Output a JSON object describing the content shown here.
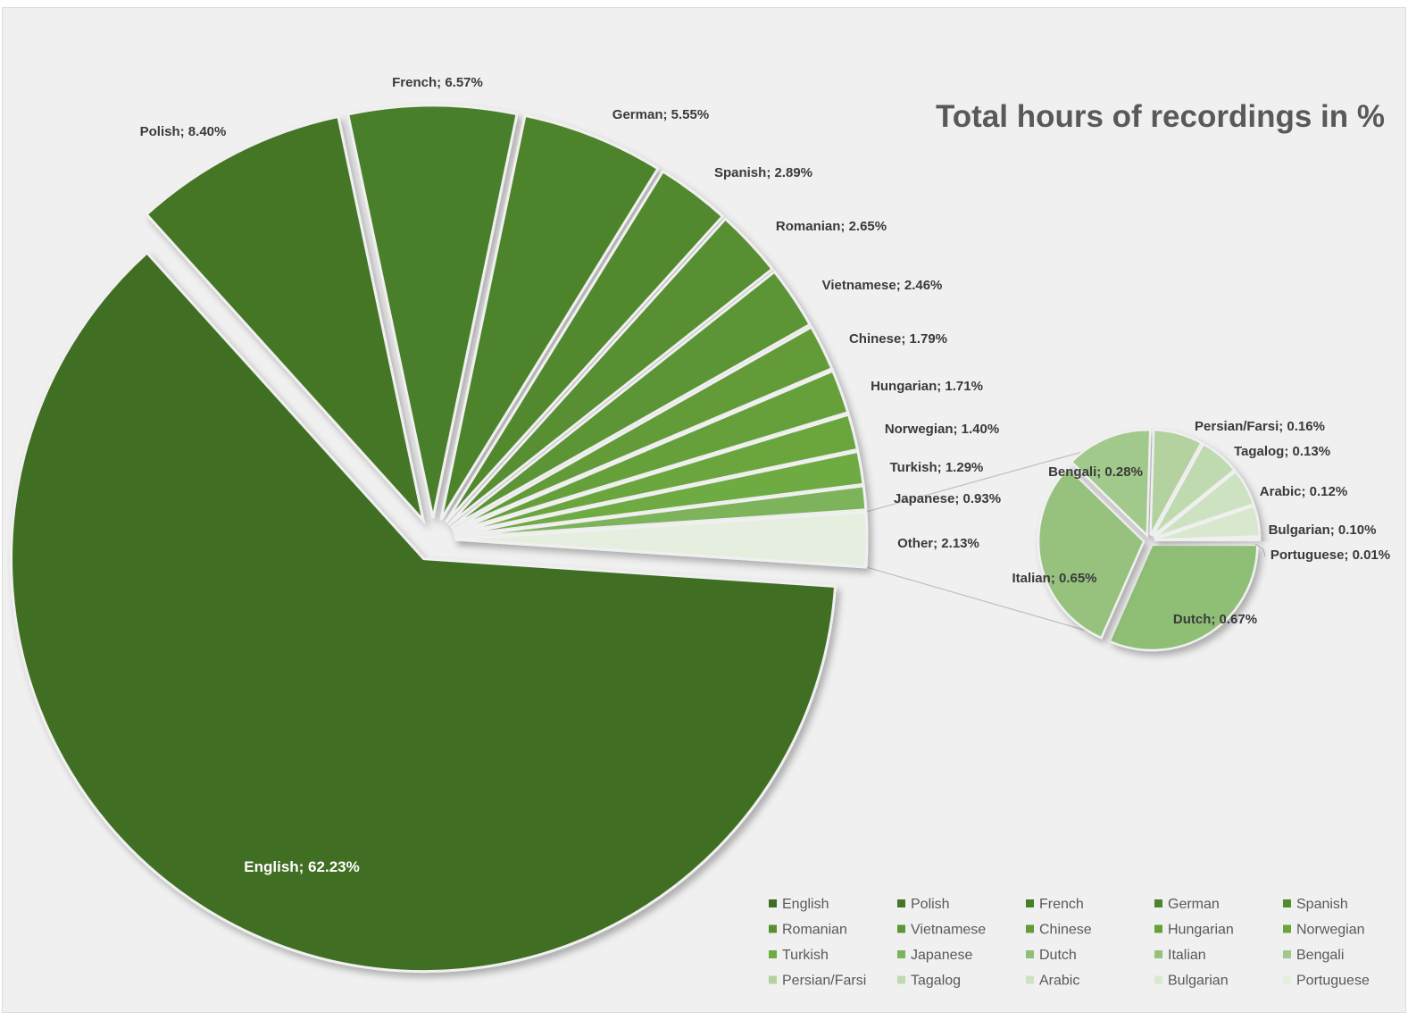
{
  "chart_data": {
    "type": "pie",
    "subtype": "bar-of-pie (pie of pie)",
    "title": "Total hours of recordings in %",
    "label_separator": "; ",
    "main_pie": {
      "slices": [
        {
          "name": "English",
          "value": 62.23,
          "label": "English; 62.23%"
        },
        {
          "name": "Polish",
          "value": 8.4,
          "label": "Polish; 8.40%"
        },
        {
          "name": "French",
          "value": 6.57,
          "label": "French; 6.57%"
        },
        {
          "name": "German",
          "value": 5.55,
          "label": "German; 5.55%"
        },
        {
          "name": "Spanish",
          "value": 2.89,
          "label": "Spanish; 2.89%"
        },
        {
          "name": "Romanian",
          "value": 2.65,
          "label": "Romanian; 2.65%"
        },
        {
          "name": "Vietnamese",
          "value": 2.46,
          "label": "Vietnamese; 2.46%"
        },
        {
          "name": "Chinese",
          "value": 1.79,
          "label": "Chinese; 1.79%"
        },
        {
          "name": "Hungarian",
          "value": 1.71,
          "label": "Hungarian; 1.71%"
        },
        {
          "name": "Norwegian",
          "value": 1.4,
          "label": "Norwegian; 1.40%"
        },
        {
          "name": "Turkish",
          "value": 1.29,
          "label": "Turkish; 1.29%"
        },
        {
          "name": "Japanese",
          "value": 0.93,
          "label": "Japanese; 0.93%"
        },
        {
          "name": "Other",
          "value": 2.13,
          "label": "Other; 2.13%"
        }
      ]
    },
    "secondary_pie": {
      "slices": [
        {
          "name": "Dutch",
          "value": 0.67,
          "label": "Dutch; 0.67%"
        },
        {
          "name": "Italian",
          "value": 0.65,
          "label": "Italian; 0.65%"
        },
        {
          "name": "Bengali",
          "value": 0.28,
          "label": "Bengali; 0.28%"
        },
        {
          "name": "Persian/Farsi",
          "value": 0.16,
          "label": "Persian/Farsi; 0.16%"
        },
        {
          "name": "Tagalog",
          "value": 0.13,
          "label": "Tagalog; 0.13%"
        },
        {
          "name": "Arabic",
          "value": 0.12,
          "label": "Arabic; 0.12%"
        },
        {
          "name": "Bulgarian",
          "value": 0.1,
          "label": "Bulgarian; 0.10%"
        },
        {
          "name": "Portuguese",
          "value": 0.01,
          "label": "Portuguese; 0.01%"
        }
      ]
    },
    "legend": {
      "placement": "bottom-right",
      "entries": [
        "English",
        "Polish",
        "French",
        "German",
        "Spanish",
        "Romanian",
        "Vietnamese",
        "Chinese",
        "Hungarian",
        "Norwegian",
        "Turkish",
        "Japanese",
        "Dutch",
        "Italian",
        "Bengali",
        "Persian/Farsi",
        "Tagalog",
        "Arabic",
        "Bulgarian",
        "Portuguese"
      ]
    },
    "colors": {
      "English": "#3f6e24",
      "Polish": "#447627",
      "French": "#4a7e2a",
      "German": "#4d832c",
      "Spanish": "#53892f",
      "Romanian": "#588f32",
      "Vietnamese": "#5c9535",
      "Chinese": "#629b38",
      "Hungarian": "#66a03b",
      "Norwegian": "#6aa63e",
      "Turkish": "#6eab43",
      "Japanese": "#7db35a",
      "Other": "#e6efdf",
      "Dutch": "#8fbf75",
      "Italian": "#96c27e",
      "Bengali": "#a1c98b",
      "Persian/Farsi": "#b3d2a0",
      "Tagalog": "#c0dab0",
      "Arabic": "#cde2c1",
      "Bulgarian": "#d8e8cf",
      "Portuguese": "#e3efdb",
      "connector_line": "#bfbfbf",
      "background": "#f0f0f0"
    },
    "grid": false
  }
}
